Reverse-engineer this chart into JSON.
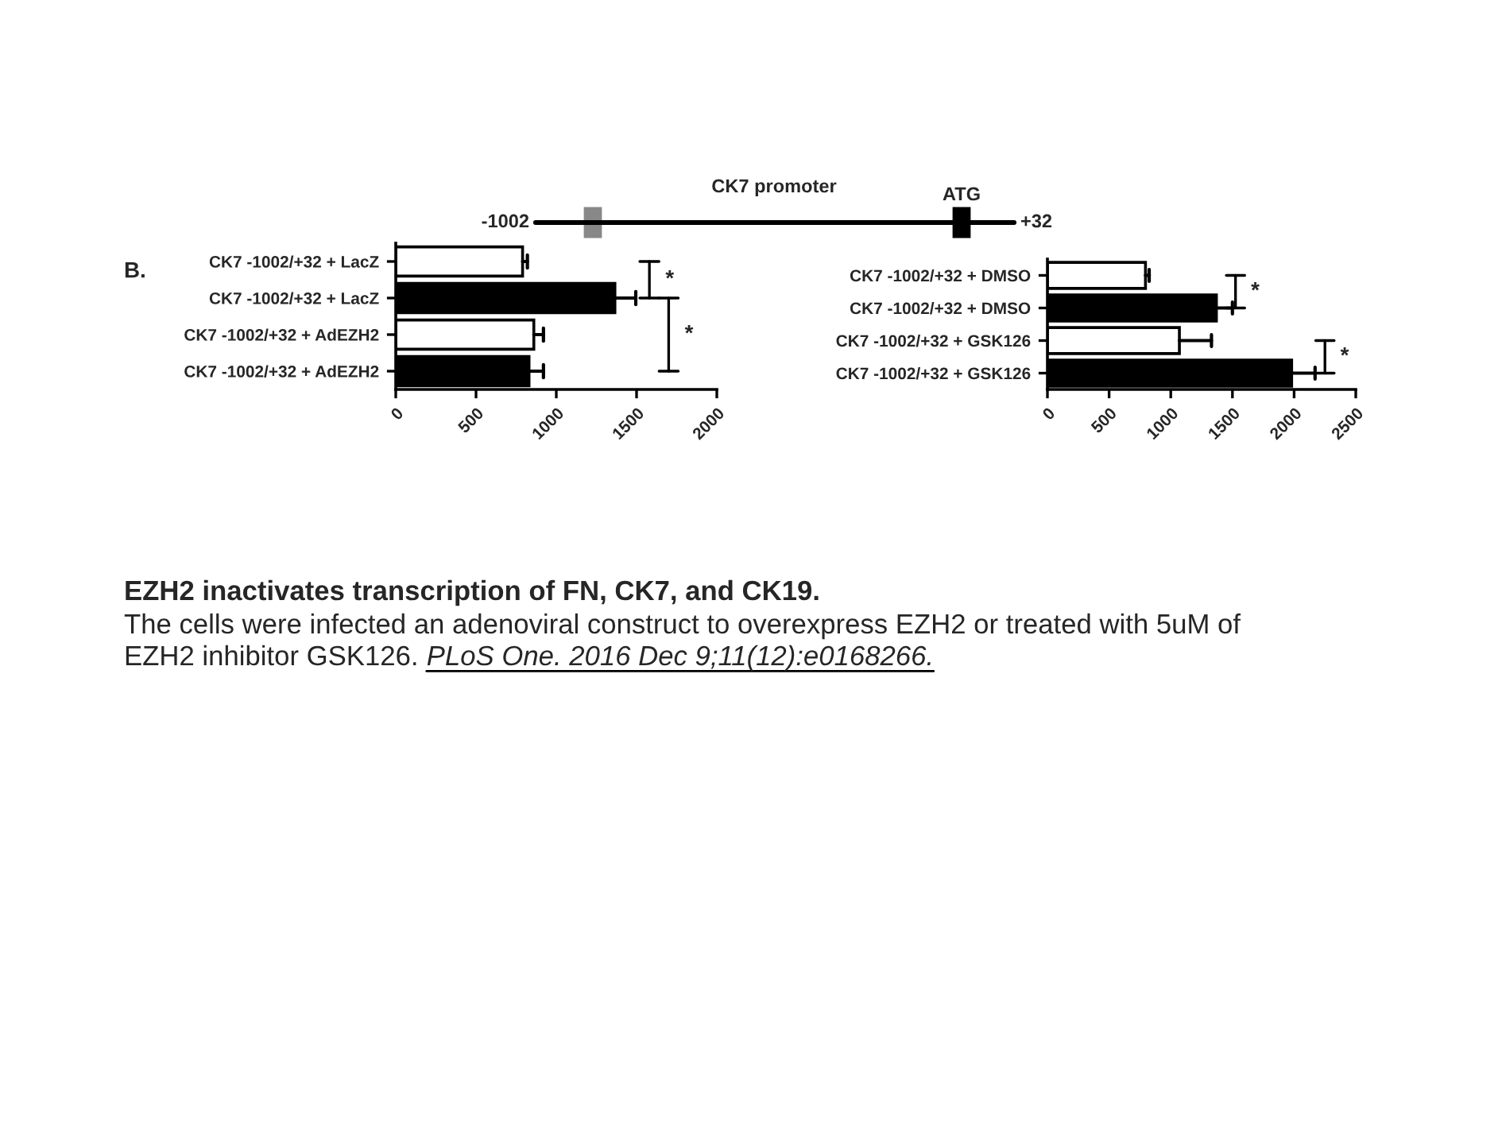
{
  "chart_data": [
    {
      "type": "bar",
      "orientation": "horizontal",
      "categories": [
        "CK7 -1002/+32 + LacZ",
        "CK7 -1002/+32 + LacZ",
        "CK7 -1002/+32 + AdEZH2",
        "CK7 -1002/+32 + AdEZH2"
      ],
      "values": [
        790,
        1365,
        860,
        830
      ],
      "colors": [
        "#ffffff",
        "#000000",
        "#ffffff",
        "#000000"
      ],
      "errors": [
        [
          790,
          820
        ],
        [
          1365,
          1495
        ],
        [
          860,
          920
        ],
        [
          830,
          920
        ]
      ],
      "xlim": [
        0,
        2000
      ],
      "xticks": [
        0,
        500,
        1000,
        1500,
        2000
      ],
      "grid": false,
      "annotations": [
        "*",
        "*",
        "B.",
        "CK7 promoter",
        "-1002",
        "ATG",
        "+32",
        "EZH2 inactivates transcription of FN, CK7, and CK19.",
        "The cells were infected an adenoviral construct to overexpress EZH2 or treated with 5uM of",
        "EZH2 inhibitor GSK126.",
        "PLoS One. 2016 Dec 9;11(12):e0168266."
      ]
    },
    {
      "type": "bar",
      "orientation": "horizontal",
      "categories": [
        "CK7 -1002/+32 + DMSO",
        "CK7 -1002/+32 + DMSO",
        "CK7 -1002/+32 + GSK126",
        "CK7 -1002/+32 + GSK126"
      ],
      "values": [
        795,
        1370,
        1070,
        1980
      ],
      "colors": [
        "#ffffff",
        "#000000",
        "#ffffff",
        "#000000"
      ],
      "errors": [
        [
          795,
          825
        ],
        [
          1370,
          1500
        ],
        [
          1070,
          1330
        ],
        [
          1980,
          2170
        ]
      ],
      "xlim": [
        0,
        2500
      ],
      "xticks": [
        0,
        500,
        1000,
        1500,
        2000,
        2500
      ],
      "grid": false,
      "annotations": [
        "*",
        "*"
      ]
    }
  ]
}
